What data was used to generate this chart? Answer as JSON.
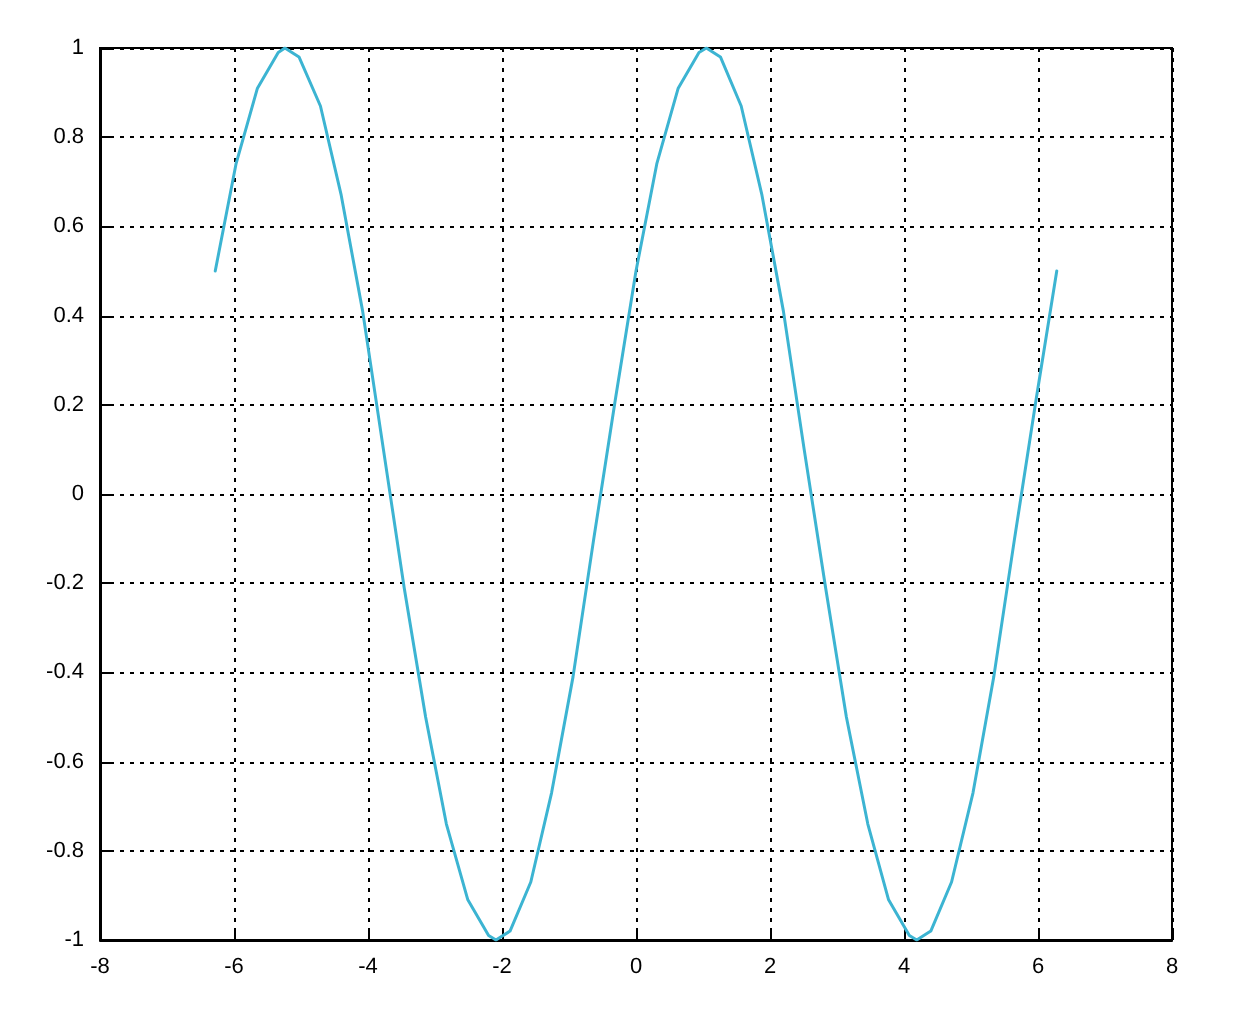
{
  "chart_data": {
    "type": "line",
    "x": [
      -6.28,
      -5.97,
      -5.65,
      -5.34,
      -5.24,
      -5.03,
      -4.71,
      -4.4,
      -4.08,
      -3.77,
      -3.46,
      -3.14,
      -2.83,
      -2.51,
      -2.2,
      -2.09,
      -1.88,
      -1.57,
      -1.26,
      -0.94,
      -0.63,
      -0.31,
      0,
      0.31,
      0.63,
      0.94,
      1.05,
      1.26,
      1.57,
      1.88,
      2.2,
      2.51,
      2.83,
      3.14,
      3.46,
      3.77,
      4.08,
      4.19,
      4.4,
      4.71,
      5.03,
      5.34,
      5.65,
      5.97,
      6.28
    ],
    "series": [
      {
        "color": "#3cb4d2",
        "values": [
          0.5,
          0.74,
          0.91,
          0.99,
          1,
          0.98,
          0.87,
          0.67,
          0.41,
          0.1,
          -0.21,
          -0.5,
          -0.74,
          -0.91,
          -0.99,
          -1,
          -0.98,
          -0.87,
          -0.67,
          -0.41,
          -0.1,
          0.21,
          0.5,
          0.74,
          0.91,
          0.99,
          1,
          0.98,
          0.87,
          0.67,
          0.41,
          0.1,
          -0.21,
          -0.5,
          -0.74,
          -0.91,
          -0.99,
          -1,
          -0.98,
          -0.87,
          -0.67,
          -0.41,
          -0.1,
          0.21,
          0.5
        ]
      }
    ],
    "xlim": [
      -8,
      8
    ],
    "xticks": [
      -8,
      -6,
      -4,
      -2,
      0,
      2,
      4,
      6,
      8
    ],
    "ylim": [
      -1,
      1
    ],
    "yticks": [
      -1,
      -0.8,
      -0.6,
      -0.4,
      -0.2,
      0,
      0.2,
      0.4,
      0.6,
      0.8,
      1
    ],
    "grid": true,
    "marker": "none",
    "line_style": "solid"
  }
}
